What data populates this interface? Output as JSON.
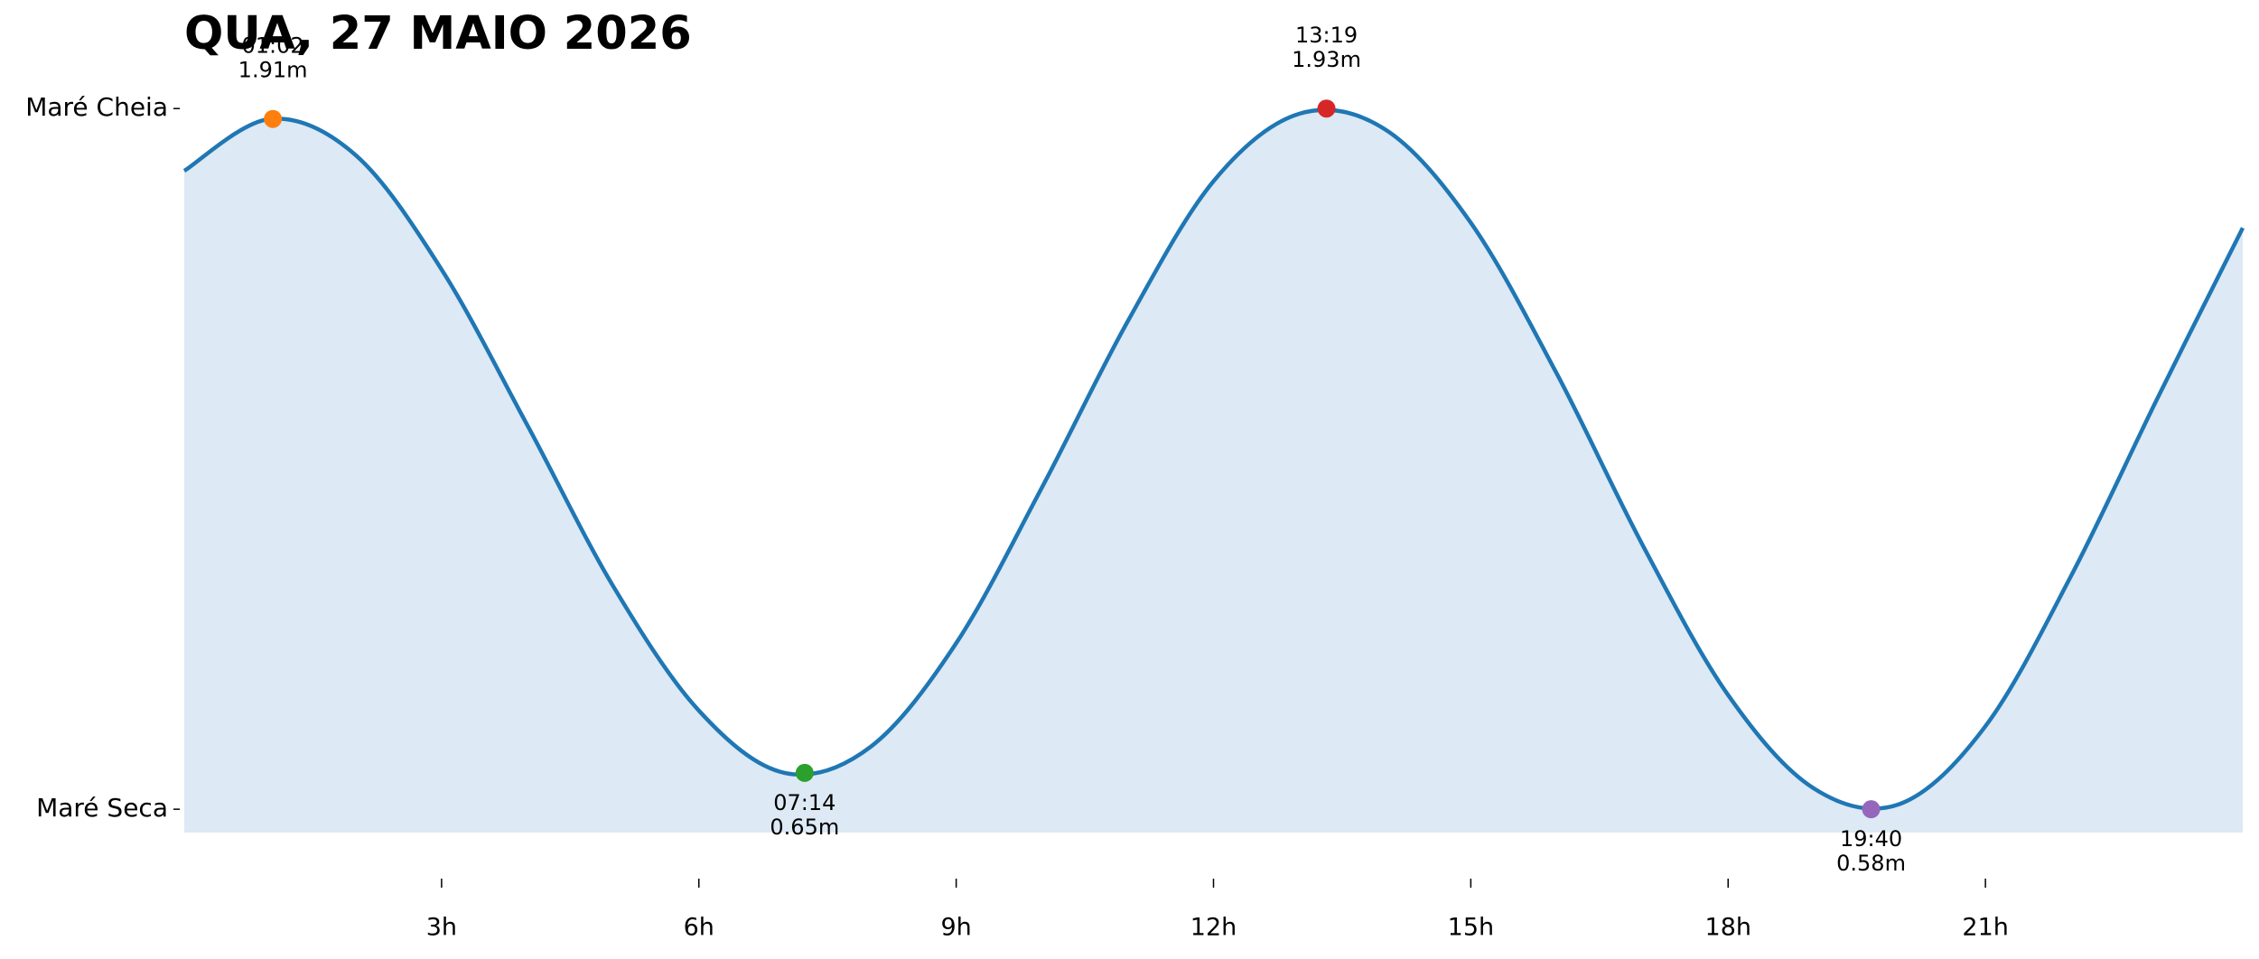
{
  "chart_data": {
    "type": "area",
    "title": "QUA, 27 MAIO 2026",
    "x": [
      0,
      1,
      2,
      3,
      4,
      5,
      6,
      7,
      8,
      9,
      10,
      11,
      12,
      13,
      14,
      15,
      16,
      17,
      18,
      19,
      20,
      21,
      22,
      23,
      24
    ],
    "series": [
      {
        "color": "#1f77b4",
        "fill": "#dde9f4",
        "values": [
          1.81,
          1.91,
          1.84,
          1.62,
          1.32,
          1.01,
          0.77,
          0.65,
          0.7,
          0.9,
          1.2,
          1.52,
          1.79,
          1.92,
          1.89,
          1.71,
          1.42,
          1.09,
          0.8,
          0.62,
          0.59,
          0.74,
          1.03,
          1.37,
          1.7
        ]
      }
    ],
    "extremes": [
      {
        "time": "01:02",
        "x": 1.033,
        "value": 1.91,
        "label": "1.91m",
        "color": "#ff7f0e"
      },
      {
        "time": "07:14",
        "x": 7.233,
        "value": 0.65,
        "label": "0.65m",
        "color": "#2ca02c"
      },
      {
        "time": "13:19",
        "x": 13.317,
        "value": 1.93,
        "label": "1.93m",
        "color": "#d62728"
      },
      {
        "time": "19:40",
        "x": 19.667,
        "value": 0.58,
        "label": "0.58m",
        "color": "#9467bd"
      }
    ],
    "xlim": [
      0,
      24
    ],
    "xticks": [
      {
        "value": 3,
        "label": "3h"
      },
      {
        "value": 6,
        "label": "6h"
      },
      {
        "value": 9,
        "label": "9h"
      },
      {
        "value": 12,
        "label": "12h"
      },
      {
        "value": 15,
        "label": "15h"
      },
      {
        "value": 18,
        "label": "18h"
      },
      {
        "value": 21,
        "label": "21h"
      }
    ],
    "ylim": [
      0.535,
      2.0
    ],
    "yticks": [
      {
        "value": 1.93,
        "label": "Maré Cheia"
      },
      {
        "value": 0.58,
        "label": "Maré Seca"
      }
    ]
  }
}
